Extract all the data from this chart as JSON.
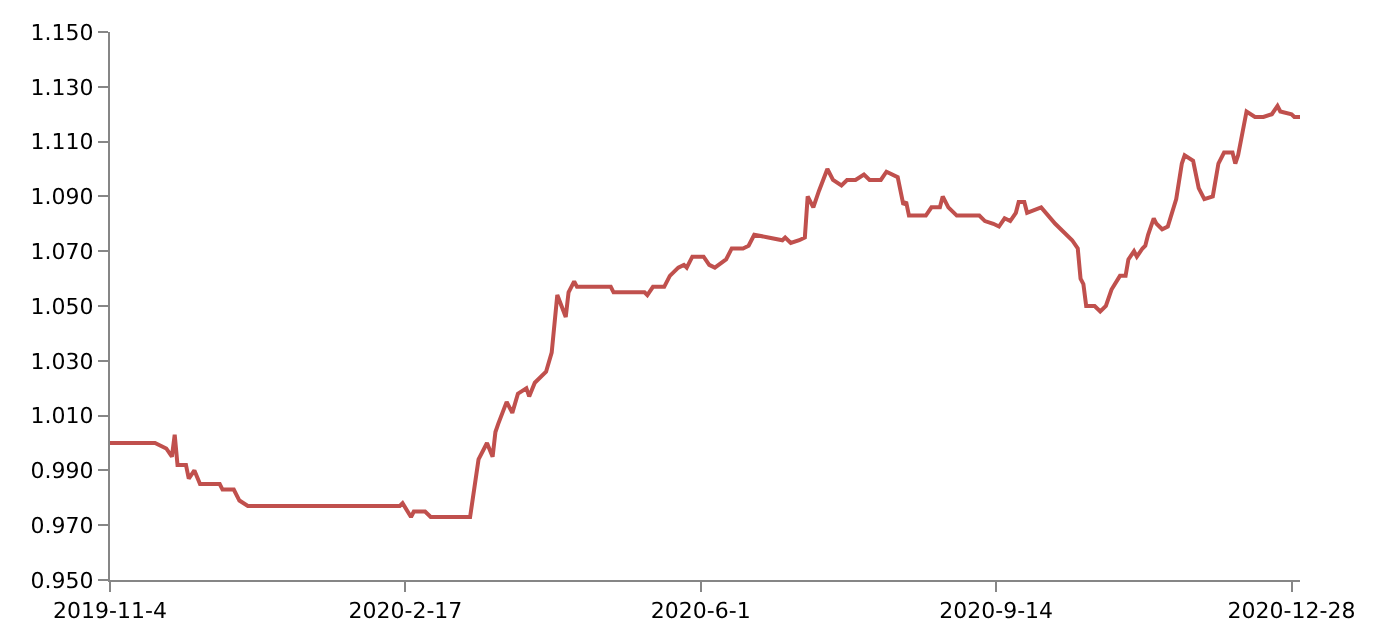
{
  "chart_data": {
    "type": "line",
    "x": [
      "2019-11-04",
      "2019-11-20",
      "2019-11-22",
      "2019-11-24",
      "2019-11-26",
      "2019-11-27",
      "2019-11-28",
      "2019-12-01",
      "2019-12-02",
      "2019-12-04",
      "2019-12-06",
      "2019-12-13",
      "2019-12-14",
      "2019-12-18",
      "2019-12-20",
      "2019-12-23",
      "2020-02-15",
      "2020-02-16",
      "2020-02-19",
      "2020-02-20",
      "2020-02-24",
      "2020-02-26",
      "2020-03-11",
      "2020-03-14",
      "2020-03-17",
      "2020-03-19",
      "2020-03-20",
      "2020-03-21",
      "2020-03-24",
      "2020-03-26",
      "2020-03-28",
      "2020-03-31",
      "2020-04-01",
      "2020-04-03",
      "2020-04-07",
      "2020-04-09",
      "2020-04-11",
      "2020-04-14",
      "2020-04-15",
      "2020-04-17",
      "2020-04-18",
      "2020-04-30",
      "2020-05-01",
      "2020-05-12",
      "2020-05-13",
      "2020-05-15",
      "2020-05-19",
      "2020-05-21",
      "2020-05-24",
      "2020-05-26",
      "2020-05-27",
      "2020-05-29",
      "2020-06-02",
      "2020-06-04",
      "2020-06-06",
      "2020-06-10",
      "2020-06-12",
      "2020-06-16",
      "2020-06-18",
      "2020-06-20",
      "2020-06-25",
      "2020-06-30",
      "2020-07-01",
      "2020-07-03",
      "2020-07-06",
      "2020-07-08",
      "2020-07-09",
      "2020-07-11",
      "2020-07-13",
      "2020-07-16",
      "2020-07-18",
      "2020-07-21",
      "2020-07-23",
      "2020-07-26",
      "2020-07-29",
      "2020-07-31",
      "2020-08-04",
      "2020-08-06",
      "2020-08-10",
      "2020-08-12",
      "2020-08-13",
      "2020-08-14",
      "2020-08-20",
      "2020-08-22",
      "2020-08-25",
      "2020-08-26",
      "2020-08-28",
      "2020-08-31",
      "2020-09-08",
      "2020-09-10",
      "2020-09-13",
      "2020-09-15",
      "2020-09-17",
      "2020-09-19",
      "2020-09-21",
      "2020-09-22",
      "2020-09-24",
      "2020-09-25",
      "2020-09-30",
      "2020-10-05",
      "2020-10-11",
      "2020-10-13",
      "2020-10-14",
      "2020-10-15",
      "2020-10-16",
      "2020-10-19",
      "2020-10-21",
      "2020-10-23",
      "2020-10-25",
      "2020-10-28",
      "2020-10-30",
      "2020-10-31",
      "2020-11-02",
      "2020-11-03",
      "2020-11-05",
      "2020-11-06",
      "2020-11-07",
      "2020-11-09",
      "2020-11-10",
      "2020-11-12",
      "2020-11-14",
      "2020-11-17",
      "2020-11-19",
      "2020-11-20",
      "2020-11-23",
      "2020-11-25",
      "2020-11-27",
      "2020-11-30",
      "2020-12-02",
      "2020-12-04",
      "2020-12-07",
      "2020-12-08",
      "2020-12-09",
      "2020-12-12",
      "2020-12-15",
      "2020-12-18",
      "2020-12-21",
      "2020-12-23",
      "2020-12-24",
      "2020-12-28",
      "2020-12-29",
      "2020-12-31"
    ],
    "series": [
      {
        "color": "#c0504d",
        "values": [
          1.0,
          1.0,
          0.999,
          0.998,
          0.995,
          1.003,
          0.992,
          0.992,
          0.987,
          0.99,
          0.985,
          0.985,
          0.983,
          0.983,
          0.979,
          0.977,
          0.977,
          0.978,
          0.973,
          0.975,
          0.975,
          0.973,
          0.973,
          0.994,
          1.0,
          0.995,
          1.004,
          1.007,
          1.015,
          1.011,
          1.018,
          1.02,
          1.017,
          1.022,
          1.026,
          1.033,
          1.054,
          1.046,
          1.055,
          1.059,
          1.057,
          1.057,
          1.055,
          1.055,
          1.054,
          1.057,
          1.057,
          1.061,
          1.064,
          1.065,
          1.064,
          1.068,
          1.068,
          1.065,
          1.064,
          1.067,
          1.071,
          1.071,
          1.072,
          1.076,
          1.075,
          1.074,
          1.075,
          1.073,
          1.074,
          1.075,
          1.09,
          1.086,
          1.092,
          1.1,
          1.096,
          1.094,
          1.096,
          1.096,
          1.098,
          1.096,
          1.096,
          1.099,
          1.097,
          1.087,
          1.088,
          1.083,
          1.083,
          1.086,
          1.086,
          1.09,
          1.086,
          1.083,
          1.083,
          1.081,
          1.08,
          1.079,
          1.082,
          1.081,
          1.084,
          1.088,
          1.088,
          1.084,
          1.086,
          1.08,
          1.074,
          1.071,
          1.06,
          1.058,
          1.05,
          1.05,
          1.048,
          1.05,
          1.056,
          1.061,
          1.061,
          1.067,
          1.07,
          1.068,
          1.071,
          1.072,
          1.076,
          1.082,
          1.08,
          1.078,
          1.079,
          1.089,
          1.102,
          1.105,
          1.103,
          1.093,
          1.089,
          1.09,
          1.102,
          1.106,
          1.106,
          1.102,
          1.105,
          1.121,
          1.119,
          1.119,
          1.12,
          1.123,
          1.121,
          1.12,
          1.119,
          1.119
        ]
      }
    ],
    "xlim": [
      "2019-11-04",
      "2020-12-31"
    ],
    "xticks": [
      {
        "value": "2019-11-04",
        "label": "2019-11-4"
      },
      {
        "value": "2020-02-17",
        "label": "2020-2-17"
      },
      {
        "value": "2020-06-01",
        "label": "2020-6-1"
      },
      {
        "value": "2020-09-14",
        "label": "2020-9-14"
      },
      {
        "value": "2020-12-28",
        "label": "2020-12-28"
      }
    ],
    "ylim": [
      0.95,
      1.15
    ],
    "yticks": [
      {
        "value": 0.95,
        "label": "0.950"
      },
      {
        "value": 0.97,
        "label": "0.970"
      },
      {
        "value": 0.99,
        "label": "0.990"
      },
      {
        "value": 1.01,
        "label": "1.010"
      },
      {
        "value": 1.03,
        "label": "1.030"
      },
      {
        "value": 1.05,
        "label": "1.050"
      },
      {
        "value": 1.07,
        "label": "1.070"
      },
      {
        "value": 1.09,
        "label": "1.090"
      },
      {
        "value": 1.11,
        "label": "1.110"
      },
      {
        "value": 1.13,
        "label": "1.130"
      },
      {
        "value": 1.15,
        "label": "1.150"
      }
    ],
    "line_style": "solid"
  }
}
